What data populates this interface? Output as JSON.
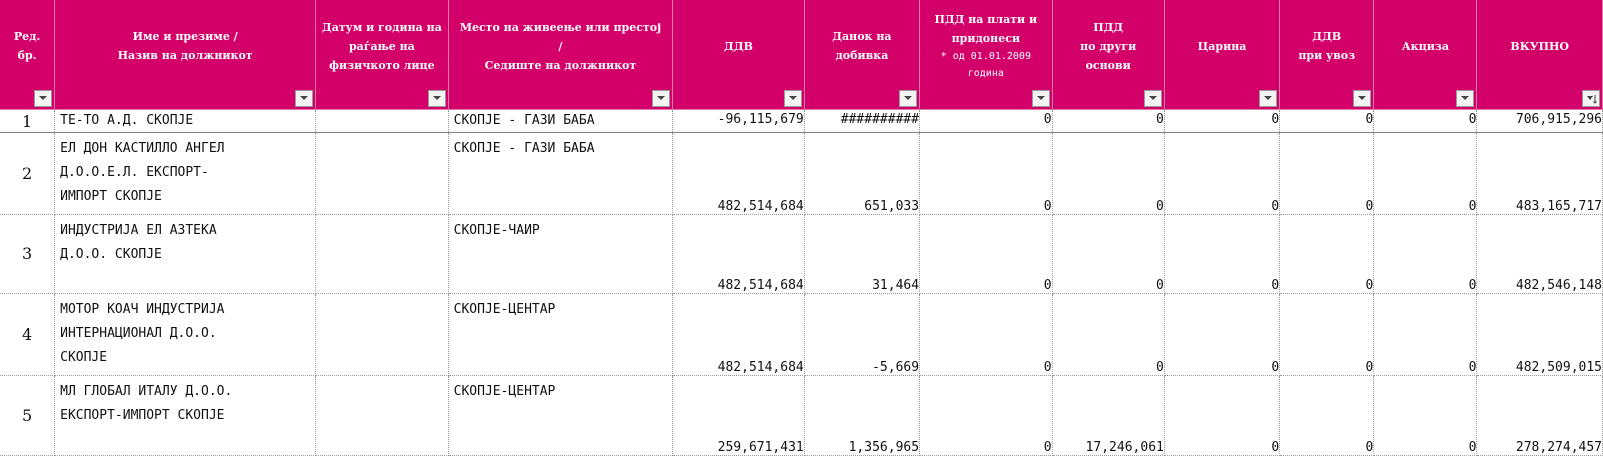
{
  "sheet": {
    "columns": [
      {
        "label_lines": [
          "Ред.",
          "бр."
        ]
      },
      {
        "label_lines": [
          "Име и презиме /",
          "Назив на должникот"
        ]
      },
      {
        "label_lines": [
          "Датум и година на",
          "раѓање на",
          "физичкото лице"
        ]
      },
      {
        "label_lines": [
          "Место на живеење или престој",
          "/",
          "Седиште на должникот"
        ]
      },
      {
        "label_lines": [
          "ДДВ"
        ]
      },
      {
        "label_lines": [
          "Данок на",
          "добивка"
        ]
      },
      {
        "label_lines": [
          "ПДД на плати и",
          "придонеси"
        ],
        "note_lines": [
          "* од 01.01.2009",
          "година"
        ]
      },
      {
        "label_lines": [
          "ПДД",
          "по други",
          "основи"
        ]
      },
      {
        "label_lines": [
          "Царина"
        ]
      },
      {
        "label_lines": [
          "ДДВ",
          "при увоз"
        ]
      },
      {
        "label_lines": [
          "Акциза"
        ]
      },
      {
        "label_lines": [
          "ВКУПНО"
        ]
      }
    ],
    "rows": [
      {
        "no": "1",
        "name": "ТЕ-ТО А.Д. СКОПЈЕ",
        "birth": "",
        "place": "СКОПЈЕ - ГАЗИ БАБА",
        "ddv": "-96,115,679",
        "profit_tax": "##########",
        "pdd_wages": "0",
        "pdd_other": "0",
        "customs": "0",
        "import_vat": "0",
        "excise": "0",
        "total": "706,915,296"
      },
      {
        "no": "2",
        "name": "ЕЛ ДОН КАСТИЛЛО АНГЕЛ\nД.О.О.Е.Л. ЕКСПОРТ-\nИМПОРТ СКОПЈЕ",
        "birth": "",
        "place": "СКОПЈЕ - ГАЗИ БАБА",
        "ddv": "482,514,684",
        "profit_tax": "651,033",
        "pdd_wages": "0",
        "pdd_other": "0",
        "customs": "0",
        "import_vat": "0",
        "excise": "0",
        "total": "483,165,717"
      },
      {
        "no": "3",
        "name": "ИНДУСТРИЈА ЕЛ АЗТЕКА\nД.О.О. СКОПЈЕ",
        "birth": "",
        "place": "СКОПЈЕ-ЧАИР",
        "ddv": "482,514,684",
        "profit_tax": "31,464",
        "pdd_wages": "0",
        "pdd_other": "0",
        "customs": "0",
        "import_vat": "0",
        "excise": "0",
        "total": "482,546,148"
      },
      {
        "no": "4",
        "name": "МОТОР КОАЧ ИНДУСТРИЈА\nИНТЕРНАЦИОНАЛ Д.О.О.\nСКОПЈЕ",
        "birth": "",
        "place": "СКОПЈЕ-ЦЕНТАР",
        "ddv": "482,514,684",
        "profit_tax": "-5,669",
        "pdd_wages": "0",
        "pdd_other": "0",
        "customs": "0",
        "import_vat": "0",
        "excise": "0",
        "total": "482,509,015"
      },
      {
        "no": "5",
        "name": "МЛ ГЛОБАЛ ИТАЛУ Д.О.О.\nЕКСПОРТ-ИМПОРТ СКОПЈЕ",
        "birth": "",
        "place": "СКОПЈЕ-ЦЕНТАР",
        "ddv": "259,671,431",
        "profit_tax": "1,356,965",
        "pdd_wages": "0",
        "pdd_other": "17,246,061",
        "customs": "0",
        "import_vat": "0",
        "excise": "0",
        "total": "278,274,457"
      }
    ]
  },
  "icons": {
    "filter": "dropdown-arrow-icon",
    "sorted_filter": "sort-descending-icon"
  },
  "colors": {
    "header_bg": "#d4006a",
    "header_text": "#ffffff",
    "grid_line": "#9a9a9a"
  }
}
